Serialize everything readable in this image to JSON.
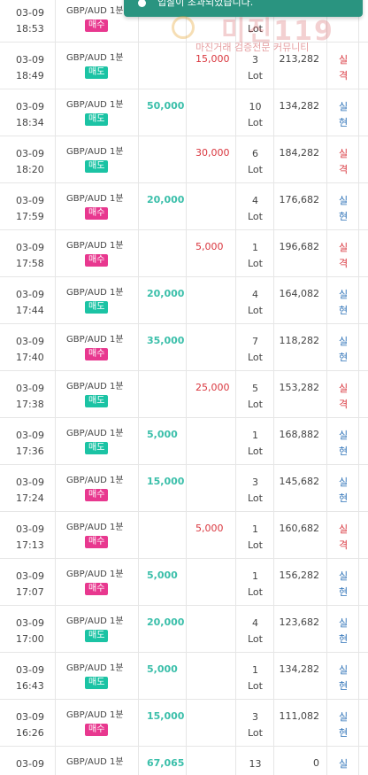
{
  "toast": {
    "text": "입찰이 초과되었습니다."
  },
  "watermark": {
    "title": "미진119",
    "subtitle": "마진거래 검증전문 커뮤니티"
  },
  "colors": {
    "buy": "#e8388f",
    "sell": "#1bc3a4",
    "profit": "#3bbfaa",
    "loss": "#d9363e",
    "win": "#2f73b8",
    "toast": "#2a9480"
  },
  "rows": [
    {
      "date": "03-09",
      "time": "18:53",
      "symbol": "GBP/AUD 1분",
      "side": "매수",
      "side_type": "buy",
      "profit": "",
      "loss": "",
      "lot": "1",
      "lot_unit": "Lot",
      "balance": "",
      "result": "현",
      "result_type": "win"
    },
    {
      "date": "03-09",
      "time": "18:49",
      "symbol": "GBP/AUD 1분",
      "side": "매도",
      "side_type": "sell",
      "profit": "",
      "loss": "15,000",
      "lot": "3",
      "lot_unit": "Lot",
      "balance": "213,282",
      "result": "실격",
      "result_type": "lose"
    },
    {
      "date": "03-09",
      "time": "18:34",
      "symbol": "GBP/AUD 1분",
      "side": "매도",
      "side_type": "sell",
      "profit": "50,000",
      "loss": "",
      "lot": "10",
      "lot_unit": "Lot",
      "balance": "134,282",
      "result": "실현",
      "result_type": "win"
    },
    {
      "date": "03-09",
      "time": "18:20",
      "symbol": "GBP/AUD 1분",
      "side": "매도",
      "side_type": "sell",
      "profit": "",
      "loss": "30,000",
      "lot": "6",
      "lot_unit": "Lot",
      "balance": "184,282",
      "result": "실격",
      "result_type": "lose"
    },
    {
      "date": "03-09",
      "time": "17:59",
      "symbol": "GBP/AUD 1분",
      "side": "매수",
      "side_type": "buy",
      "profit": "20,000",
      "loss": "",
      "lot": "4",
      "lot_unit": "Lot",
      "balance": "176,682",
      "result": "실현",
      "result_type": "win"
    },
    {
      "date": "03-09",
      "time": "17:58",
      "symbol": "GBP/AUD 1분",
      "side": "매수",
      "side_type": "buy",
      "profit": "",
      "loss": "5,000",
      "lot": "1",
      "lot_unit": "Lot",
      "balance": "196,682",
      "result": "실격",
      "result_type": "lose"
    },
    {
      "date": "03-09",
      "time": "17:44",
      "symbol": "GBP/AUD 1분",
      "side": "매도",
      "side_type": "sell",
      "profit": "20,000",
      "loss": "",
      "lot": "4",
      "lot_unit": "Lot",
      "balance": "164,082",
      "result": "실현",
      "result_type": "win"
    },
    {
      "date": "03-09",
      "time": "17:40",
      "symbol": "GBP/AUD 1분",
      "side": "매수",
      "side_type": "buy",
      "profit": "35,000",
      "loss": "",
      "lot": "7",
      "lot_unit": "Lot",
      "balance": "118,282",
      "result": "실현",
      "result_type": "win"
    },
    {
      "date": "03-09",
      "time": "17:38",
      "symbol": "GBP/AUD 1분",
      "side": "매도",
      "side_type": "sell",
      "profit": "",
      "loss": "25,000",
      "lot": "5",
      "lot_unit": "Lot",
      "balance": "153,282",
      "result": "실격",
      "result_type": "lose"
    },
    {
      "date": "03-09",
      "time": "17:36",
      "symbol": "GBP/AUD 1분",
      "side": "매도",
      "side_type": "sell",
      "profit": "5,000",
      "loss": "",
      "lot": "1",
      "lot_unit": "Lot",
      "balance": "168,882",
      "result": "실현",
      "result_type": "win"
    },
    {
      "date": "03-09",
      "time": "17:24",
      "symbol": "GBP/AUD 1분",
      "side": "매수",
      "side_type": "buy",
      "profit": "15,000",
      "loss": "",
      "lot": "3",
      "lot_unit": "Lot",
      "balance": "145,682",
      "result": "실현",
      "result_type": "win"
    },
    {
      "date": "03-09",
      "time": "17:13",
      "symbol": "GBP/AUD 1분",
      "side": "매수",
      "side_type": "buy",
      "profit": "",
      "loss": "5,000",
      "lot": "1",
      "lot_unit": "Lot",
      "balance": "160,682",
      "result": "실격",
      "result_type": "lose"
    },
    {
      "date": "03-09",
      "time": "17:07",
      "symbol": "GBP/AUD 1분",
      "side": "매수",
      "side_type": "buy",
      "profit": "5,000",
      "loss": "",
      "lot": "1",
      "lot_unit": "Lot",
      "balance": "156,282",
      "result": "실현",
      "result_type": "win"
    },
    {
      "date": "03-09",
      "time": "17:00",
      "symbol": "GBP/AUD 1분",
      "side": "매도",
      "side_type": "sell",
      "profit": "20,000",
      "loss": "",
      "lot": "4",
      "lot_unit": "Lot",
      "balance": "123,682",
      "result": "실현",
      "result_type": "win"
    },
    {
      "date": "03-09",
      "time": "16:43",
      "symbol": "GBP/AUD 1분",
      "side": "매도",
      "side_type": "sell",
      "profit": "5,000",
      "loss": "",
      "lot": "1",
      "lot_unit": "Lot",
      "balance": "134,282",
      "result": "실현",
      "result_type": "win"
    },
    {
      "date": "03-09",
      "time": "16:26",
      "symbol": "GBP/AUD 1분",
      "side": "매수",
      "side_type": "buy",
      "profit": "15,000",
      "loss": "",
      "lot": "3",
      "lot_unit": "Lot",
      "balance": "111,082",
      "result": "실현",
      "result_type": "win"
    },
    {
      "date": "03-09",
      "time": "",
      "symbol": "GBP/AUD 1분",
      "side": "",
      "side_type": "",
      "profit": "67,065",
      "loss": "",
      "lot": "13",
      "lot_unit": "",
      "balance": "0",
      "result": "실",
      "result_type": "win"
    }
  ]
}
